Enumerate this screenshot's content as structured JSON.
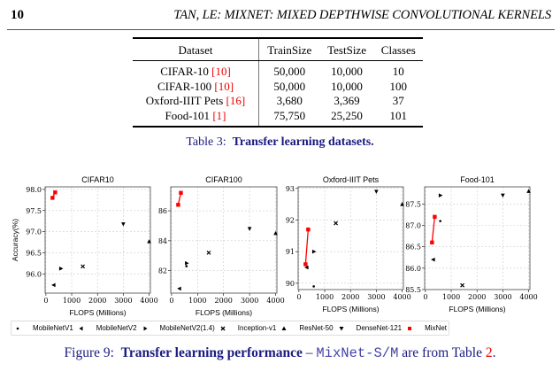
{
  "header": {
    "page_number": "10",
    "running_title": "TAN, LE: MIXNET: MIXED DEPTHWISE CONVOLUTIONAL KERNELS"
  },
  "table": {
    "columns": [
      "Dataset",
      "TrainSize",
      "TestSize",
      "Classes"
    ],
    "rows": [
      {
        "dataset": "CIFAR-10",
        "ref": "[10]",
        "train": "50,000",
        "test": "10,000",
        "classes": "10"
      },
      {
        "dataset": "CIFAR-100",
        "ref": "[10]",
        "train": "50,000",
        "test": "10,000",
        "classes": "100"
      },
      {
        "dataset": "Oxford-IIIT Pets",
        "ref": "[16]",
        "train": "3,680",
        "test": "3,369",
        "classes": "37"
      },
      {
        "dataset": "Food-101",
        "ref": "[1]",
        "train": "75,750",
        "test": "25,250",
        "classes": "101"
      }
    ],
    "caption_label": "Table 3:",
    "caption_text": "Transfer learning datasets."
  },
  "figure": {
    "caption_label": "Figure 9:",
    "caption_bold": "Transfer learning performance",
    "caption_dash": " – ",
    "caption_mono": "MixNet-S/M",
    "caption_rest": " are from Table ",
    "caption_ref": "2",
    "caption_end": ".",
    "legend": [
      {
        "name": "MobileNetV1",
        "marker": "dot",
        "color": "#000000"
      },
      {
        "name": "MobileNetV2",
        "marker": "triangle-left",
        "color": "#000000"
      },
      {
        "name": "MobileNetV2(1.4)",
        "marker": "triangle-right",
        "color": "#000000"
      },
      {
        "name": "Inception-v1",
        "marker": "x",
        "color": "#000000"
      },
      {
        "name": "ResNet-50",
        "marker": "triangle-up",
        "color": "#000000"
      },
      {
        "name": "DenseNet-121",
        "marker": "triangle-down",
        "color": "#000000"
      },
      {
        "name": "MixNet",
        "marker": "square",
        "color": "#ff0000"
      }
    ]
  },
  "chart_data": [
    {
      "type": "scatter",
      "title": "CIFAR10",
      "xlabel": "FLOPS (Millions)",
      "ylabel": "Accuracy(%)",
      "xlim": [
        -30,
        4050
      ],
      "ylim": [
        95.55,
        98.06
      ],
      "xticks": [
        0,
        1000,
        2000,
        3000,
        4000
      ],
      "yticks": [
        "96.0",
        "96.5",
        "97.0",
        "97.5",
        "98.0"
      ],
      "grid": true,
      "series": [
        {
          "name": "MobileNetV1",
          "x": [
            575
          ],
          "y": [
            96.13
          ]
        },
        {
          "name": "MobileNetV2",
          "x": [
            300
          ],
          "y": [
            95.74
          ]
        },
        {
          "name": "MobileNetV2(1.4)",
          "x": [
            585
          ],
          "y": [
            96.13
          ]
        },
        {
          "name": "Inception-v1",
          "x": [
            1430
          ],
          "y": [
            96.18
          ]
        },
        {
          "name": "ResNet-50",
          "x": [
            4000
          ],
          "y": [
            96.77
          ]
        },
        {
          "name": "DenseNet-121",
          "x": [
            3000
          ],
          "y": [
            97.18
          ]
        },
        {
          "name": "MixNet",
          "x": [
            256,
            360
          ],
          "y": [
            97.8,
            97.93
          ]
        }
      ]
    },
    {
      "type": "scatter",
      "title": "CIFAR100",
      "xlabel": "FLOPS (Millions)",
      "ylabel": "",
      "xlim": [
        -30,
        4050
      ],
      "ylim": [
        80.5,
        87.6
      ],
      "xticks": [
        0,
        1000,
        2000,
        3000,
        4000
      ],
      "yticks": [
        "82",
        "84",
        "86"
      ],
      "grid": true,
      "series": [
        {
          "name": "MobileNetV1",
          "x": [
            575
          ],
          "y": [
            82.3
          ]
        },
        {
          "name": "MobileNetV2",
          "x": [
            300
          ],
          "y": [
            80.8
          ]
        },
        {
          "name": "MobileNetV2(1.4)",
          "x": [
            585
          ],
          "y": [
            82.5
          ]
        },
        {
          "name": "Inception-v1",
          "x": [
            1430
          ],
          "y": [
            83.2
          ]
        },
        {
          "name": "ResNet-50",
          "x": [
            4000
          ],
          "y": [
            84.5
          ]
        },
        {
          "name": "DenseNet-121",
          "x": [
            3000
          ],
          "y": [
            84.8
          ]
        },
        {
          "name": "MixNet",
          "x": [
            256,
            360
          ],
          "y": [
            86.4,
            87.2
          ]
        }
      ]
    },
    {
      "type": "scatter",
      "title": "Oxford-IIIT Pets",
      "xlabel": "FLOPS (Millions)",
      "ylabel": "",
      "xlim": [
        -30,
        4050
      ],
      "ylim": [
        89.8,
        93.05
      ],
      "xticks": [
        0,
        1000,
        2000,
        3000,
        4000
      ],
      "yticks": [
        "90",
        "91",
        "92",
        "93"
      ],
      "grid": true,
      "series": [
        {
          "name": "MobileNetV1",
          "x": [
            575
          ],
          "y": [
            89.9
          ]
        },
        {
          "name": "MobileNetV2",
          "x": [
            300
          ],
          "y": [
            90.5
          ]
        },
        {
          "name": "MobileNetV2(1.4)",
          "x": [
            585
          ],
          "y": [
            91.0
          ]
        },
        {
          "name": "Inception-v1",
          "x": [
            1430
          ],
          "y": [
            91.9
          ]
        },
        {
          "name": "ResNet-50",
          "x": [
            4000
          ],
          "y": [
            92.5
          ]
        },
        {
          "name": "DenseNet-121",
          "x": [
            3000
          ],
          "y": [
            92.9
          ]
        },
        {
          "name": "MixNet",
          "x": [
            256,
            360
          ],
          "y": [
            90.6,
            91.7
          ]
        }
      ]
    },
    {
      "type": "scatter",
      "title": "Food-101",
      "xlabel": "FLOPS (Millions)",
      "ylabel": "",
      "xlim": [
        -30,
        4050
      ],
      "ylim": [
        85.5,
        87.9
      ],
      "xticks": [
        0,
        1000,
        2000,
        3000,
        4000
      ],
      "yticks": [
        "85.5",
        "86.0",
        "86.5",
        "87.0",
        "87.5"
      ],
      "grid": true,
      "series": [
        {
          "name": "MobileNetV1",
          "x": [
            575
          ],
          "y": [
            87.1
          ]
        },
        {
          "name": "MobileNetV2",
          "x": [
            300
          ],
          "y": [
            86.2
          ]
        },
        {
          "name": "MobileNetV2(1.4)",
          "x": [
            585
          ],
          "y": [
            87.7
          ]
        },
        {
          "name": "Inception-v1",
          "x": [
            1430
          ],
          "y": [
            85.6
          ]
        },
        {
          "name": "ResNet-50",
          "x": [
            4000
          ],
          "y": [
            87.8
          ]
        },
        {
          "name": "DenseNet-121",
          "x": [
            3000
          ],
          "y": [
            87.7
          ]
        },
        {
          "name": "MixNet",
          "x": [
            256,
            360
          ],
          "y": [
            86.6,
            87.2
          ]
        }
      ]
    }
  ]
}
